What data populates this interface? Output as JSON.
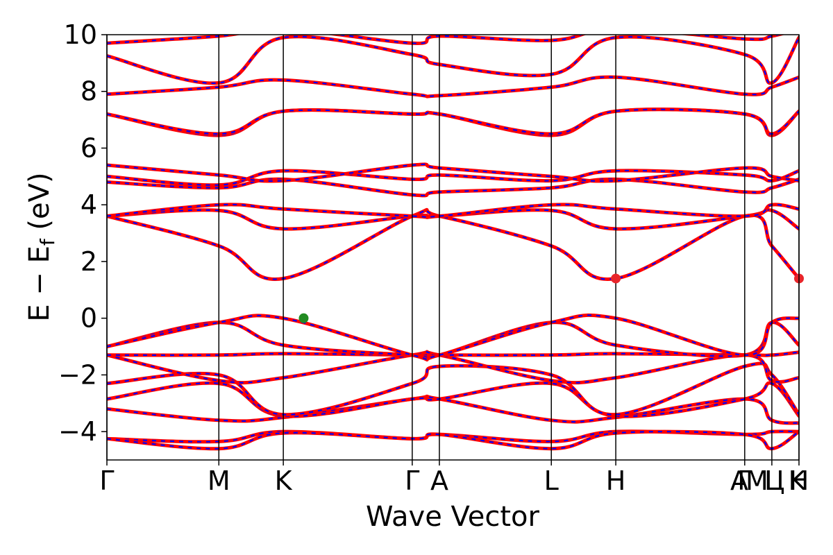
{
  "chart_data": {
    "type": "line",
    "title": "",
    "xlabel": "Wave Vector",
    "ylabel": "E − E_f (eV)",
    "ylabel_main": "E − E",
    "ylabel_sub": "f",
    "ylabel_tail": " (eV)",
    "ylim": [
      -5,
      10
    ],
    "yticks": [
      -4,
      -2,
      0,
      2,
      4,
      6,
      8,
      10
    ],
    "ytick_labels": [
      "−4",
      "−2",
      "0",
      "2",
      "4",
      "6",
      "8",
      "10"
    ],
    "xlim": [
      0,
      10.2
    ],
    "kpoints": [
      {
        "label": "Γ",
        "x": 0.0
      },
      {
        "label": "M",
        "x": 1.65
      },
      {
        "label": "K",
        "x": 2.6
      },
      {
        "label": "Γ",
        "x": 4.5
      },
      {
        "label": "A",
        "x": 4.9
      },
      {
        "label": "L",
        "x": 6.55
      },
      {
        "label": "H",
        "x": 7.5
      },
      {
        "label": "A",
        "x": 9.4
      },
      {
        "label": "L",
        "x": 9.8
      },
      {
        "label": "M",
        "x": 9.8
      },
      {
        "label": "H",
        "x": 10.2
      },
      {
        "label": "K",
        "x": 10.2
      }
    ],
    "xtick_labels_drawn": [
      {
        "text": "Γ",
        "x": 0.0
      },
      {
        "text": "M",
        "x": 1.65
      },
      {
        "text": "K",
        "x": 2.6
      },
      {
        "text": "Γ",
        "x": 4.5
      },
      {
        "text": "A",
        "x": 4.9
      },
      {
        "text": "L",
        "x": 6.55
      },
      {
        "text": "H",
        "x": 7.5
      },
      {
        "text": "A",
        "x": 9.32
      },
      {
        "text": "Γ",
        "x": 9.4
      },
      {
        "text": "M",
        "x": 9.58
      },
      {
        "text": "L",
        "x": 9.8
      },
      {
        "text": "Ц",
        "x": 9.84
      },
      {
        "text": "K",
        "x": 10.17
      },
      {
        "text": "H",
        "x": 10.2
      }
    ],
    "series_styles": [
      {
        "color": "#ff0000",
        "style": "solid"
      },
      {
        "color": "#0000ff",
        "style": "dashed"
      }
    ],
    "markers": [
      {
        "kind": "VBM",
        "x": 2.9,
        "y": 0.0,
        "color": "#228b22"
      },
      {
        "kind": "CBM",
        "x": 7.5,
        "y": 1.4,
        "color": "#e8252a"
      },
      {
        "kind": "CBM",
        "x": 10.2,
        "y": 1.4,
        "color": "#e8252a"
      }
    ],
    "bands": [
      {
        "y": {
          "0": -4.25,
          "1.65": -4.35,
          "2.6": -4.0,
          "4.5": -4.25,
          "4.9": -4.1,
          "6.55": -4.35,
          "7.5": -4.0,
          "9.4": -4.1,
          "9.8": -4.0,
          "10.2": -4.0
        }
      },
      {
        "y": {
          "0": -4.25,
          "1.65": -4.6,
          "2.6": -4.05,
          "4.5": -4.25,
          "4.9": -4.1,
          "6.55": -4.6,
          "7.5": -4.05,
          "9.4": -4.1,
          "9.8": -4.6,
          "10.2": -4.0
        }
      },
      {
        "y": {
          "0": -3.2,
          "1.65": -3.6,
          "2.6": -3.5,
          "4.5": -2.85,
          "4.9": -2.85,
          "6.55": -3.6,
          "7.5": -3.5,
          "9.4": -2.85,
          "9.8": -3.6,
          "10.2": -3.7
        }
      },
      {
        "y": {
          "0": -2.85,
          "1.65": -2.3,
          "2.6": -3.45,
          "4.5": -2.85,
          "4.9": -2.85,
          "6.55": -2.3,
          "7.5": -3.45,
          "9.4": -2.85,
          "9.8": -2.3,
          "10.2": -3.45
        }
      },
      {
        "y": {
          "0": -2.3,
          "1.65": -2.0,
          "2.6": -3.4,
          "4.5": -2.3,
          "4.9": -1.7,
          "6.55": -2.0,
          "7.5": -3.4,
          "9.4": -1.7,
          "9.8": -2.0,
          "10.2": -3.4
        }
      },
      {
        "y": {
          "0": -1.3,
          "1.65": -2.2,
          "2.6": -2.1,
          "4.5": -1.3,
          "4.9": -1.3,
          "6.55": -2.2,
          "7.5": -2.1,
          "9.4": -1.3,
          "9.8": -2.2,
          "10.2": -2.1
        }
      },
      {
        "y": {
          "0": -1.3,
          "1.65": -1.3,
          "2.6": -1.25,
          "4.5": -1.3,
          "4.9": -1.3,
          "6.55": -1.3,
          "7.5": -1.25,
          "9.4": -1.3,
          "9.8": -1.3,
          "10.2": -1.2
        }
      },
      {
        "y": {
          "0": -1.0,
          "1.65": -0.15,
          "2.6": -0.95,
          "4.5": -1.3,
          "4.9": -1.3,
          "6.55": -0.15,
          "7.5": -0.95,
          "9.4": -1.3,
          "9.8": -0.15,
          "10.2": -0.95
        }
      },
      {
        "y": {
          "0": -1.0,
          "1.65": -0.15,
          "2.6": 0.0,
          "4.5": -1.3,
          "4.9": -1.3,
          "6.55": -0.15,
          "7.5": 0.0,
          "9.4": -1.3,
          "9.8": -0.15,
          "10.2": 0.0
        }
      },
      {
        "y": {
          "0": 3.6,
          "1.65": 2.55,
          "2.6": 1.4,
          "4.5": 3.6,
          "4.9": 3.6,
          "6.55": 2.55,
          "7.5": 1.4,
          "9.4": 3.6,
          "9.8": 2.55,
          "10.2": 1.4
        }
      },
      {
        "y": {
          "0": 3.6,
          "1.65": 3.8,
          "2.6": 3.15,
          "4.5": 3.6,
          "4.9": 3.6,
          "6.55": 3.8,
          "7.5": 3.15,
          "9.4": 3.6,
          "9.8": 3.8,
          "10.2": 3.15
        }
      },
      {
        "y": {
          "0": 3.6,
          "1.65": 4.0,
          "2.6": 3.85,
          "4.5": 3.6,
          "4.9": 3.6,
          "6.55": 4.0,
          "7.5": 3.85,
          "9.4": 3.6,
          "9.8": 4.0,
          "10.2": 3.85
        }
      },
      {
        "y": {
          "0": 4.8,
          "1.65": 4.6,
          "2.6": 4.9,
          "4.5": 4.35,
          "4.9": 4.45,
          "6.55": 4.6,
          "7.5": 4.9,
          "9.4": 4.45,
          "9.8": 4.6,
          "10.2": 4.9
        }
      },
      {
        "y": {
          "0": 5.0,
          "1.65": 4.7,
          "2.6": 5.2,
          "4.5": 4.9,
          "4.9": 5.05,
          "6.55": 4.85,
          "7.5": 5.2,
          "9.4": 5.05,
          "9.8": 4.85,
          "10.2": 5.2
        }
      },
      {
        "y": {
          "0": 5.4,
          "1.65": 5.05,
          "2.6": 4.85,
          "4.5": 5.4,
          "4.9": 5.3,
          "6.55": 5.0,
          "7.5": 4.85,
          "9.4": 5.3,
          "9.8": 5.0,
          "10.2": 4.85
        }
      },
      {
        "y": {
          "0": 7.2,
          "1.65": 6.45,
          "2.6": 7.3,
          "4.5": 7.2,
          "4.9": 7.2,
          "6.55": 6.45,
          "7.5": 7.3,
          "9.4": 7.2,
          "9.8": 6.45,
          "10.2": 7.3
        }
      },
      {
        "y": {
          "0": 7.2,
          "1.65": 6.5,
          "2.6": 7.3,
          "4.5": 7.2,
          "4.9": 7.2,
          "6.55": 6.5,
          "7.5": 7.3,
          "9.4": 7.2,
          "9.8": 6.5,
          "10.2": 7.3
        }
      },
      {
        "y": {
          "0": 7.9,
          "1.65": 8.15,
          "2.6": 8.4,
          "4.5": 7.9,
          "4.9": 7.85,
          "6.55": 8.15,
          "7.5": 8.5,
          "9.4": 7.9,
          "9.8": 8.15,
          "10.2": 8.5
        }
      },
      {
        "y": {
          "0": 9.25,
          "1.65": 8.3,
          "2.6": 9.9,
          "4.5": 9.3,
          "4.9": 8.95,
          "6.55": 8.6,
          "7.5": 9.9,
          "9.4": 9.3,
          "9.8": 8.3,
          "10.2": 9.9
        }
      },
      {
        "y": {
          "0": 9.7,
          "1.65": 9.95,
          "2.6": 10.2,
          "4.5": 9.7,
          "4.9": 9.95,
          "6.55": 9.8,
          "7.5": 10.2,
          "9.4": 9.85,
          "9.8": 9.95,
          "10.2": 10.2
        }
      }
    ]
  }
}
